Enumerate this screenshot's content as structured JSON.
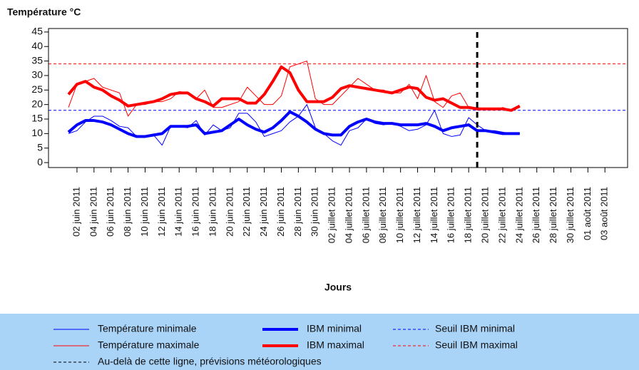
{
  "chart_data": {
    "type": "line",
    "title": "Température °C",
    "x_label": "Jours",
    "categories": [
      null,
      "02 juin 2011",
      null,
      "04 juin 2011",
      null,
      "06 juin 2011",
      null,
      "08 juin 2011",
      null,
      "10 juin 2011",
      null,
      "12 juin 2011",
      null,
      "14 juin 2011",
      null,
      "16 juin 2011",
      null,
      "18 juin 2011",
      null,
      "20 juin 2011",
      null,
      "22 juin 2011",
      null,
      "24 juin 2011",
      null,
      "26 juin 2011",
      null,
      "28 juin 2011",
      null,
      "30 juin 2011",
      null,
      "02 juillet 2011",
      null,
      "04 juillet 2011",
      null,
      "06 juillet 2011",
      null,
      "08 juillet 2011",
      null,
      "10 juillet 2011",
      null,
      "12 juillet 2011",
      null,
      "14 juillet 2011",
      null,
      "16 juillet 2011",
      null,
      "18 juillet 2011",
      null,
      "20 juillet 2011",
      null,
      "22 juillet 2011",
      null,
      "24 juillet 2011",
      null,
      "26 juillet 2011",
      null,
      "28 juillet 2011",
      null,
      "30 juillet 2011",
      null,
      "01 août 2011",
      null,
      "03 août 2011"
    ],
    "series": [
      {
        "name": "Température minimale",
        "color": "#0000ff",
        "line_width": 1,
        "values": [
          10,
          11,
          14,
          16,
          16,
          14.5,
          12.5,
          12,
          9,
          9,
          9.5,
          6,
          12.5,
          12.5,
          12,
          14.5,
          9.5,
          13,
          11,
          12,
          17,
          17,
          14,
          9,
          10,
          11,
          14,
          16,
          20,
          12,
          10,
          7.5,
          6,
          11,
          12,
          15,
          13.5,
          13,
          13.5,
          12.5,
          11,
          11.5,
          13,
          18,
          10,
          9,
          9.5,
          15.5,
          13,
          11,
          11,
          10.5,
          10,
          10,
          null,
          null,
          null,
          null,
          null,
          null,
          null,
          null,
          null,
          null
        ]
      },
      {
        "name": "Température maximale",
        "color": "#ff0000",
        "line_width": 1,
        "values": [
          19,
          27,
          28,
          29,
          26,
          25,
          24,
          16,
          20,
          20,
          21,
          21,
          22,
          24.5,
          24,
          22,
          25,
          19,
          19,
          20,
          21,
          26,
          23,
          20,
          20,
          23,
          33,
          34,
          35,
          22,
          20,
          20,
          23,
          26,
          29,
          27,
          25,
          25,
          24,
          24,
          27,
          22,
          30,
          21,
          19,
          23,
          24,
          19,
          19,
          18.5,
          18,
          19,
          18,
          19,
          null,
          null,
          null,
          null,
          null,
          null,
          null,
          null,
          null,
          null
        ]
      },
      {
        "name": "IBM minimal",
        "color": "#0000ff",
        "line_width": 4,
        "values": [
          10.5,
          13,
          14.5,
          14.5,
          14,
          13,
          11.5,
          10,
          9,
          9,
          9.5,
          10,
          12.5,
          12.5,
          12.5,
          13,
          10,
          10.5,
          11,
          13,
          15,
          13,
          11.5,
          10.5,
          12,
          14.5,
          17.5,
          16,
          14,
          11.5,
          10,
          9.5,
          9.5,
          12.5,
          14,
          15,
          14,
          13.5,
          13.5,
          13,
          13,
          13,
          13.5,
          12.5,
          11,
          12,
          12.5,
          13,
          11,
          11,
          10.5,
          10,
          10,
          10,
          null,
          null,
          null,
          null,
          null,
          null,
          null,
          null,
          null,
          null
        ]
      },
      {
        "name": "IBM maximal",
        "color": "#ff0000",
        "line_width": 4,
        "values": [
          23.5,
          27,
          28,
          26,
          25,
          23,
          21.5,
          19.5,
          20,
          20.5,
          21,
          22,
          23.5,
          24,
          24,
          22,
          21,
          19.5,
          22,
          22,
          22,
          20.5,
          20.5,
          23.5,
          28,
          33,
          31,
          25,
          21,
          21,
          21,
          22.5,
          25.5,
          26.5,
          26,
          25.5,
          25,
          24.5,
          24,
          25,
          26,
          25.5,
          22.5,
          21.5,
          22,
          20.5,
          19,
          19,
          18.5,
          18.5,
          18.5,
          18.5,
          18,
          19.5,
          null,
          null,
          null,
          null,
          null,
          null,
          null,
          null,
          null,
          null
        ]
      }
    ],
    "thresholds": [
      {
        "name": "Seuil IBM minimal",
        "value": 18,
        "color": "#0000ff"
      },
      {
        "name": "Seuil IBM maximal",
        "value": 34,
        "color": "#ff0000"
      }
    ],
    "forecast": {
      "name": "Au-delà de cette ligne, prévisions météorologiques",
      "category_index": 48,
      "color": "#000000"
    },
    "ylim": [
      -1.7,
      46.2
    ],
    "yticks": [
      0,
      5,
      10,
      15,
      20,
      25,
      30,
      35,
      40,
      45
    ],
    "legend_background": "#a9d3f7"
  }
}
